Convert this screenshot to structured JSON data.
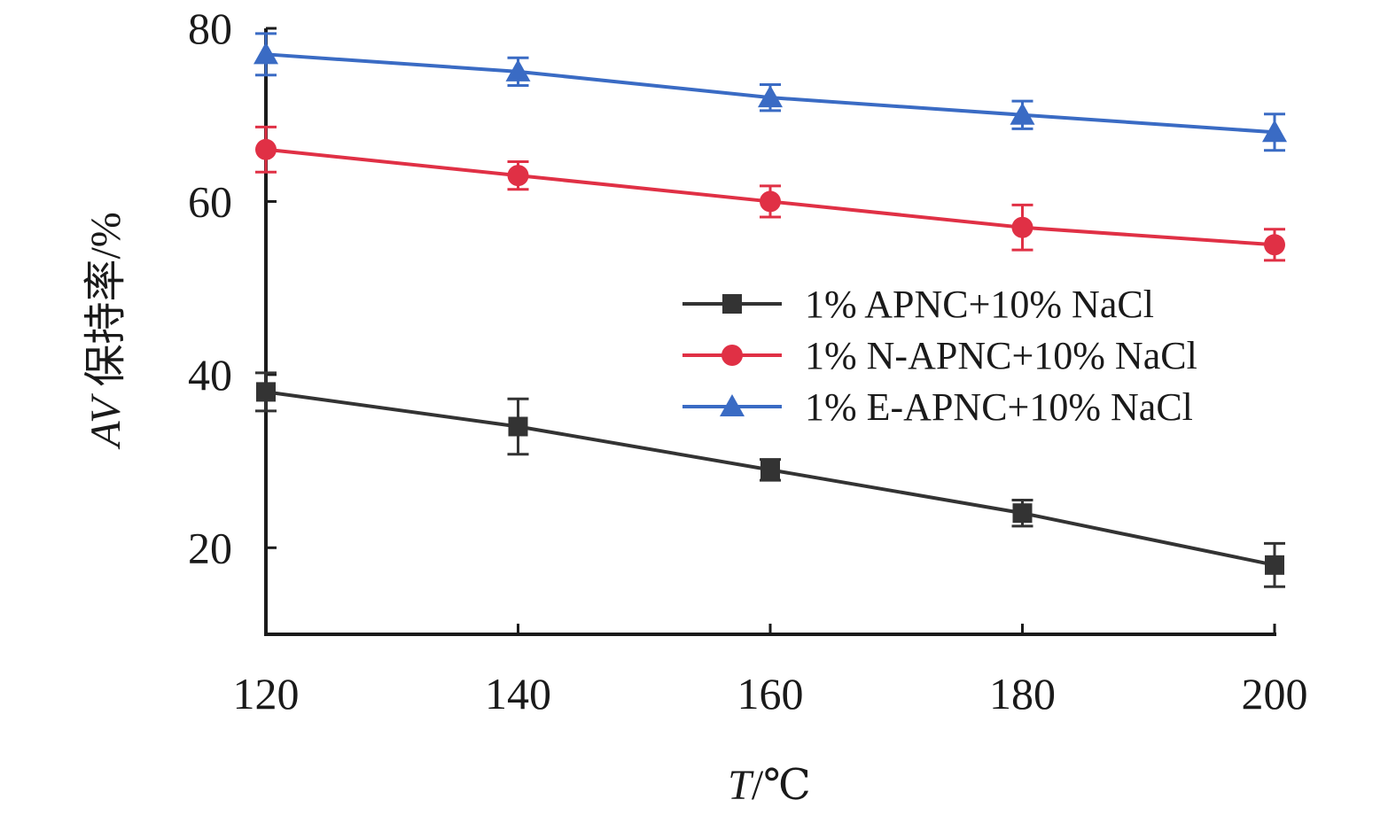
{
  "chart_data": {
    "type": "line",
    "x": [
      120,
      140,
      160,
      180,
      200
    ],
    "xlim": [
      120,
      200
    ],
    "ylim": [
      10,
      80
    ],
    "x_ticks": [
      120,
      140,
      160,
      180,
      200
    ],
    "y_ticks": [
      20,
      40,
      60,
      80
    ],
    "xlabel": {
      "var": "T",
      "unit": "/℃"
    },
    "ylabel": {
      "var": "AV",
      "unit": " 保持率/%"
    },
    "grid": false,
    "legend_position": "right",
    "series": [
      {
        "name": "1% APNC+10% NaCl",
        "color": "#333333",
        "marker": "square",
        "values": [
          38,
          34,
          29,
          24,
          18
        ],
        "errors": [
          2.2,
          3.2,
          1.2,
          1.5,
          2.5
        ]
      },
      {
        "name": "1% N-APNC+10% NaCl",
        "color": "#e03045",
        "marker": "circle",
        "values": [
          66,
          63,
          60,
          57,
          55
        ],
        "errors": [
          2.6,
          1.6,
          1.8,
          2.6,
          1.8
        ]
      },
      {
        "name": "1% E-APNC+10% NaCl",
        "color": "#3a6bc4",
        "marker": "triangle",
        "values": [
          77,
          75,
          72,
          70,
          68
        ],
        "errors": [
          2.4,
          1.6,
          1.5,
          1.6,
          2.1
        ]
      }
    ]
  }
}
